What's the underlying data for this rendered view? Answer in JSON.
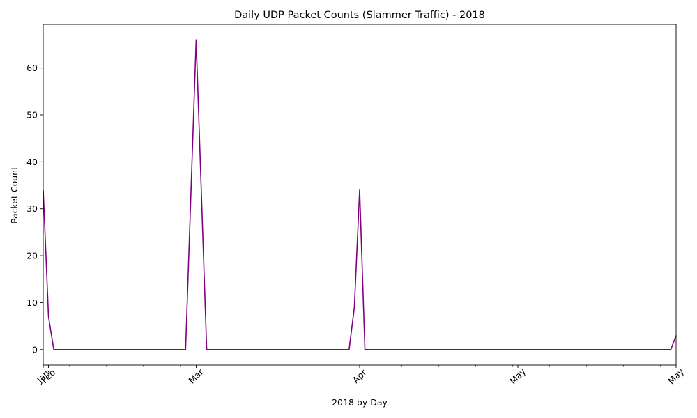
{
  "chart_data": {
    "type": "line",
    "title": "Daily UDP Packet Counts (Slammer Traffic) - 2018",
    "xlabel": "2018 by Day",
    "ylabel": "Packet Count",
    "line_color": "#800080",
    "grid": false,
    "legend": "none",
    "xlim": [
      "2018-01-31",
      "2018-05-31"
    ],
    "ylim": [
      -3.3,
      69.3
    ],
    "yticks": [
      0,
      10,
      20,
      30,
      40,
      50,
      60
    ],
    "xticks_major": [
      {
        "date": "2018-01-31",
        "label": "Jan"
      },
      {
        "date": "2018-02-01",
        "label": "Feb"
      },
      {
        "date": "2018-03-01",
        "label": "Mar"
      },
      {
        "date": "2018-04-01",
        "label": "Apr"
      },
      {
        "date": "2018-05-01",
        "label": "May"
      },
      {
        "date": "2018-05-31",
        "label": "May"
      }
    ],
    "xticks_minor": [
      "2018-02-05",
      "2018-02-12",
      "2018-02-19",
      "2018-02-26",
      "2018-03-05",
      "2018-03-12",
      "2018-03-19",
      "2018-03-26",
      "2018-04-02",
      "2018-04-09",
      "2018-04-16",
      "2018-04-23",
      "2018-04-30",
      "2018-05-07",
      "2018-05-14",
      "2018-05-21",
      "2018-05-28"
    ],
    "series": [
      {
        "points": [
          {
            "x": "2018-01-31",
            "y": 34
          },
          {
            "x": "2018-02-01",
            "y": 7
          },
          {
            "x": "2018-02-02",
            "y": 0
          },
          {
            "x": "2018-02-27",
            "y": 0
          },
          {
            "x": "2018-03-01",
            "y": 66
          },
          {
            "x": "2018-03-03",
            "y": 0
          },
          {
            "x": "2018-03-30",
            "y": 0
          },
          {
            "x": "2018-03-31",
            "y": 9
          },
          {
            "x": "2018-04-01",
            "y": 34
          },
          {
            "x": "2018-04-02",
            "y": 0
          },
          {
            "x": "2018-05-30",
            "y": 0
          },
          {
            "x": "2018-05-31",
            "y": 3
          }
        ]
      }
    ]
  }
}
